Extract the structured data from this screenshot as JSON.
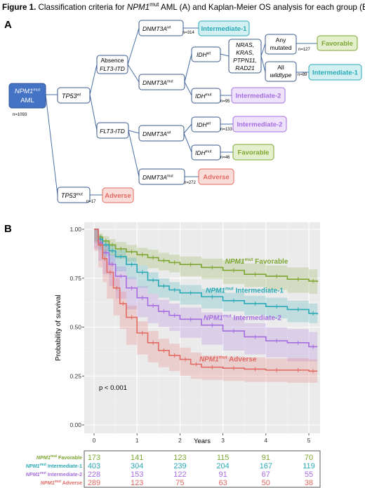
{
  "caption": {
    "label": "Figure 1.",
    "pre": " Classification criteria for ",
    "gene": "NPM1",
    "sup": "mut",
    "post": " AML (A) and Kaplan-Meier OS analysis for each group (B)"
  },
  "panel_a": {
    "label": "A",
    "root": {
      "gene": "NPM1",
      "sup": "mut",
      "line2": "AML",
      "n": "n=1093"
    },
    "tp53wt": {
      "gene": "TP53",
      "sup": "wt"
    },
    "tp53mut": {
      "gene": "TP53",
      "sup": "mut",
      "n": "n=17"
    },
    "absence": {
      "line1": "Absence",
      "line2": "FLT3-ITD"
    },
    "flt3itd": {
      "text": "FLT3-ITD"
    },
    "d1wt": {
      "gene": "DNMT3A",
      "sup": "wt",
      "n": "n=314"
    },
    "d1mut": {
      "gene": "DNMT3A",
      "sup": "mut"
    },
    "idh1wt": {
      "gene": "IDH",
      "sup": "wt"
    },
    "idh1mut": {
      "gene": "IDH",
      "sup": "mut",
      "n": "n=95"
    },
    "ras": {
      "lines": [
        "NRAS,",
        "KRAS,",
        "PTPN11,",
        "RAD21"
      ]
    },
    "anymut": {
      "lines": [
        "Any",
        "mutated"
      ],
      "n": "n=127"
    },
    "allwt": {
      "lines": [
        "All",
        "wildtype"
      ],
      "n": "n=89"
    },
    "d2wt": {
      "gene": "DNMT3A",
      "sup": "wt"
    },
    "d2mut": {
      "gene": "DNMT3A",
      "sup": "mut",
      "n": "n=272"
    },
    "idh2wt": {
      "gene": "IDH",
      "sup": "wt",
      "n": "n=133"
    },
    "idh2mut": {
      "gene": "IDH",
      "sup": "mut",
      "n": "n=46"
    },
    "outcomes": {
      "o1": "Intermediate-1",
      "o2": "Favorable",
      "o3": "Intermediate-1",
      "o4": "Intermediate-2",
      "o5": "Intermediate-2",
      "o6": "Favorable",
      "o7": "Adverse",
      "o8": "Adverse"
    },
    "colors": {
      "node_border": "#3a5a8c",
      "root_fill": "#4472c4",
      "favorable": "#7ea632",
      "favorable_fill": "#e3efcd",
      "inter1": "#2aa9b6",
      "inter1_fill": "#d2f0f2",
      "inter2": "#a66de0",
      "inter2_fill": "#efe2fb",
      "adverse": "#e26a62",
      "adverse_fill": "#fadcd9"
    }
  },
  "panel_b": {
    "label": "B",
    "pvalue": "p < 0.001",
    "group_prefix": "NPM1",
    "group_sup": "mut",
    "table_header": ""
  },
  "chart_data": {
    "type": "line",
    "xlabel": "Years",
    "ylabel": "Probability of survival",
    "xlim": [
      0,
      5.2
    ],
    "ylim": [
      0,
      1.0
    ],
    "xticks": [
      "0",
      "1",
      "2",
      "3",
      "4",
      "5"
    ],
    "yticks": [
      "0.00",
      "0.25",
      "0.50",
      "0.75",
      "1.00"
    ],
    "grid": true,
    "series": [
      {
        "name": "Favorable",
        "color": "#7ea632",
        "x": [
          0,
          0.1,
          0.2,
          0.35,
          0.5,
          0.75,
          1.0,
          1.25,
          1.5,
          1.75,
          2.0,
          2.5,
          3.0,
          3.5,
          4.0,
          4.5,
          5.0,
          5.2
        ],
        "y": [
          1.0,
          0.96,
          0.94,
          0.92,
          0.9,
          0.885,
          0.87,
          0.855,
          0.84,
          0.83,
          0.82,
          0.805,
          0.79,
          0.77,
          0.76,
          0.745,
          0.735,
          0.73
        ],
        "upper": [
          1.0,
          0.98,
          0.965,
          0.95,
          0.935,
          0.92,
          0.905,
          0.895,
          0.88,
          0.87,
          0.86,
          0.85,
          0.84,
          0.825,
          0.815,
          0.805,
          0.795,
          0.79
        ],
        "lower": [
          1.0,
          0.94,
          0.915,
          0.89,
          0.865,
          0.85,
          0.835,
          0.815,
          0.8,
          0.79,
          0.78,
          0.76,
          0.745,
          0.72,
          0.705,
          0.69,
          0.675,
          0.67
        ]
      },
      {
        "name": "Intermediate-1",
        "color": "#2aa9b6",
        "x": [
          0,
          0.1,
          0.2,
          0.35,
          0.5,
          0.75,
          1.0,
          1.25,
          1.5,
          1.75,
          2.0,
          2.5,
          3.0,
          3.5,
          4.0,
          4.5,
          5.0,
          5.2
        ],
        "y": [
          1.0,
          0.95,
          0.92,
          0.89,
          0.86,
          0.82,
          0.78,
          0.74,
          0.71,
          0.69,
          0.675,
          0.655,
          0.635,
          0.62,
          0.605,
          0.59,
          0.57,
          0.565
        ],
        "upper": [
          1.0,
          0.97,
          0.945,
          0.92,
          0.895,
          0.855,
          0.815,
          0.78,
          0.75,
          0.73,
          0.715,
          0.695,
          0.675,
          0.66,
          0.65,
          0.635,
          0.62,
          0.615
        ],
        "lower": [
          1.0,
          0.93,
          0.895,
          0.86,
          0.825,
          0.785,
          0.745,
          0.7,
          0.67,
          0.65,
          0.635,
          0.615,
          0.595,
          0.58,
          0.56,
          0.545,
          0.525,
          0.52
        ]
      },
      {
        "name": "Intermediate-2",
        "color": "#a66de0",
        "x": [
          0,
          0.1,
          0.2,
          0.35,
          0.5,
          0.75,
          1.0,
          1.25,
          1.5,
          1.75,
          2.0,
          2.5,
          3.0,
          3.5,
          4.0,
          4.5,
          5.0,
          5.2
        ],
        "y": [
          1.0,
          0.93,
          0.88,
          0.82,
          0.76,
          0.7,
          0.65,
          0.61,
          0.58,
          0.56,
          0.54,
          0.51,
          0.48,
          0.45,
          0.43,
          0.42,
          0.4,
          0.4
        ],
        "upper": [
          1.0,
          0.96,
          0.92,
          0.87,
          0.81,
          0.755,
          0.71,
          0.67,
          0.64,
          0.62,
          0.6,
          0.575,
          0.55,
          0.52,
          0.5,
          0.49,
          0.475,
          0.475
        ],
        "lower": [
          1.0,
          0.9,
          0.84,
          0.77,
          0.71,
          0.645,
          0.59,
          0.55,
          0.52,
          0.5,
          0.48,
          0.445,
          0.41,
          0.38,
          0.36,
          0.345,
          0.325,
          0.325
        ]
      },
      {
        "name": "Adverse",
        "color": "#e26a62",
        "x": [
          0,
          0.1,
          0.2,
          0.3,
          0.45,
          0.6,
          0.75,
          1.0,
          1.25,
          1.5,
          1.75,
          2.0,
          2.25,
          2.5,
          3.0,
          3.5,
          4.0,
          4.5,
          5.0,
          5.2
        ],
        "y": [
          1.0,
          0.92,
          0.85,
          0.78,
          0.7,
          0.62,
          0.55,
          0.47,
          0.42,
          0.38,
          0.355,
          0.335,
          0.31,
          0.295,
          0.29,
          0.285,
          0.28,
          0.28,
          0.275,
          0.275
        ],
        "upper": [
          1.0,
          0.95,
          0.895,
          0.83,
          0.755,
          0.68,
          0.61,
          0.53,
          0.48,
          0.44,
          0.415,
          0.395,
          0.37,
          0.355,
          0.35,
          0.345,
          0.34,
          0.34,
          0.335,
          0.335
        ],
        "lower": [
          1.0,
          0.89,
          0.805,
          0.73,
          0.645,
          0.56,
          0.49,
          0.41,
          0.36,
          0.32,
          0.295,
          0.275,
          0.25,
          0.235,
          0.23,
          0.225,
          0.22,
          0.22,
          0.215,
          0.215
        ]
      }
    ],
    "labels": [
      {
        "series": "Favorable",
        "text": "Favorable",
        "x": 3.05,
        "y": 0.825
      },
      {
        "series": "Intermediate-1",
        "text": "Intermediate-1",
        "x": 2.6,
        "y": 0.675
      },
      {
        "series": "Intermediate-2",
        "text": "Intermediate-2",
        "x": 2.55,
        "y": 0.535
      },
      {
        "series": "Adverse",
        "text": "Adverse",
        "x": 2.45,
        "y": 0.325
      }
    ],
    "risk_table": {
      "times": [
        "0",
        "1",
        "2",
        "3",
        "4",
        "5"
      ],
      "rows": [
        {
          "label": "Favorable",
          "color": "#7ea632",
          "values": [
            "173",
            "141",
            "123",
            "115",
            "91",
            "70"
          ]
        },
        {
          "label": "Intermediate-1",
          "color": "#2aa9b6",
          "values": [
            "403",
            "304",
            "239",
            "204",
            "167",
            "119"
          ]
        },
        {
          "label": "Intermediate-2",
          "color": "#a66de0",
          "values": [
            "228",
            "153",
            "122",
            "91",
            "67",
            "55"
          ]
        },
        {
          "label": "Adverse",
          "color": "#e26a62",
          "values": [
            "289",
            "123",
            "75",
            "63",
            "50",
            "38"
          ]
        }
      ]
    }
  }
}
